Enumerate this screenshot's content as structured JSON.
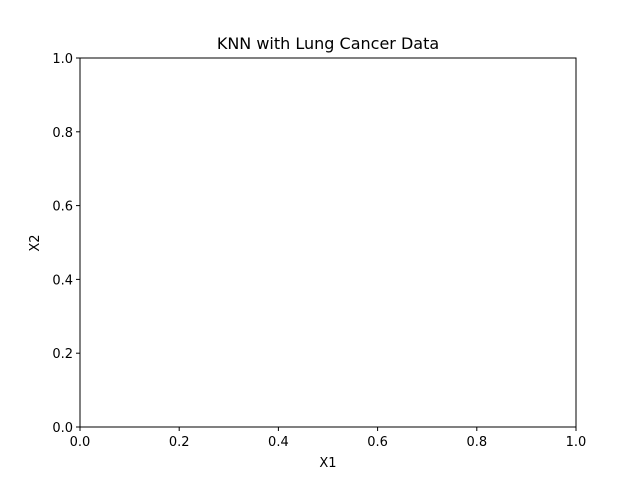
{
  "chart_data": {
    "type": "scatter",
    "title": "KNN with Lung Cancer Data",
    "xlabel": "X1",
    "ylabel": "X2",
    "xlim": [
      0,
      1
    ],
    "ylim": [
      0,
      1
    ],
    "xticks": [
      "0.0",
      "0.2",
      "0.4",
      "0.6",
      "0.8",
      "1.0"
    ],
    "yticks": [
      "0.0",
      "0.2",
      "0.4",
      "0.6",
      "0.8",
      "1.0"
    ],
    "grid": false,
    "series": []
  }
}
